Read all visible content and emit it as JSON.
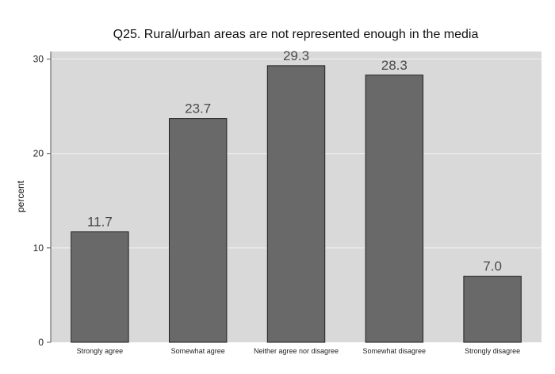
{
  "chart_data": {
    "type": "bar",
    "title": "Q25. Rural/urban areas are not represented enough in the media",
    "xlabel": "",
    "ylabel": "percent",
    "categories": [
      "Strongly agree",
      "Somewhat agree",
      "Neither agree nor disagree",
      "Somewhat disagree",
      "Strongly disagree"
    ],
    "values": [
      11.7,
      23.7,
      29.3,
      28.3,
      7.0
    ],
    "value_labels": [
      "11.7",
      "23.7",
      "29.3",
      "28.3",
      "7.0"
    ],
    "yticks": [
      0,
      10,
      20,
      30
    ],
    "ylim": [
      0,
      30.8
    ],
    "grid": true,
    "colors": {
      "bar_fill": "#696969",
      "bar_stroke": "#222222",
      "plot_bg": "#d9d9d9",
      "grid": "#f2f2f2"
    }
  }
}
